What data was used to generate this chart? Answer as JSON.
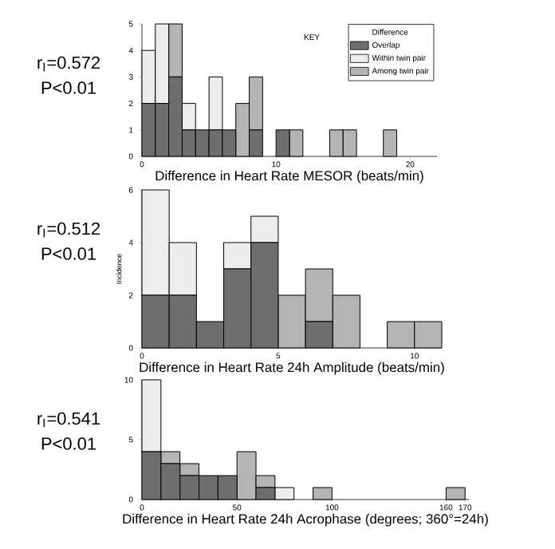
{
  "chart_data": [
    {
      "type": "bar",
      "stacked": true,
      "xlabel": "Difference in Heart Rate MESOR (beats/min)",
      "legend": "top right",
      "legend_title": "Difference",
      "annotations": [
        "r$_{I}$=0.572",
        "P<0.01",
        "KEY"
      ],
      "x": [
        0.5,
        1.5,
        2.5,
        3.5,
        4.5,
        5.5,
        6.5,
        7.5,
        8.5,
        9.5,
        10.5,
        11.5,
        12.5,
        13.5,
        14.5,
        15.5,
        16.5,
        17.5,
        18.5
      ],
      "series": [
        {
          "name": "Overlap",
          "color": "#6e6e6e",
          "values": [
            2,
            2,
            3,
            1,
            1,
            1,
            1,
            0,
            1,
            0,
            1,
            0,
            0,
            0,
            0,
            0,
            0,
            0,
            0
          ]
        },
        {
          "name": "Within twin pair",
          "color": "#ececec",
          "values": [
            2,
            3,
            0,
            1,
            0,
            2,
            0,
            0,
            0,
            0,
            0,
            0,
            0,
            0,
            0,
            0,
            0,
            0,
            0
          ]
        },
        {
          "name": "Among twin pair",
          "color": "#b4b4b4",
          "values": [
            0,
            0,
            2,
            0,
            0,
            0,
            0,
            2,
            2,
            0,
            0,
            1,
            0,
            0,
            1,
            1,
            0,
            0,
            1
          ]
        }
      ],
      "xlim": [
        0,
        22
      ],
      "xticks": [
        0,
        10,
        20
      ],
      "ylim": [
        0,
        5
      ],
      "yticks": [
        0,
        1,
        2,
        3,
        4,
        5
      ]
    },
    {
      "type": "bar",
      "stacked": true,
      "xlabel": "Difference in Heart Rate 24h Amplitude (beats/min)",
      "ylabel": "Incidence",
      "annotations": [
        "r$_{I}$=0.512",
        "P<0.01"
      ],
      "x": [
        0.5,
        1.5,
        2.5,
        3.5,
        4.5,
        5.5,
        6.5,
        7.5,
        8.5,
        9.5,
        10.5
      ],
      "series": [
        {
          "color": "#6e6e6e",
          "values": [
            2,
            2,
            1,
            3,
            4,
            0,
            1,
            0,
            0,
            0,
            0
          ]
        },
        {
          "color": "#ececec",
          "values": [
            4,
            2,
            0,
            1,
            1,
            0,
            0,
            0,
            0,
            0,
            0
          ]
        },
        {
          "color": "#b4b4b4",
          "values": [
            0,
            0,
            0,
            0,
            0,
            2,
            2,
            2,
            0,
            1,
            1
          ]
        }
      ],
      "xlim": [
        0,
        11
      ],
      "xticks": [
        0,
        5,
        10
      ],
      "ylim": [
        0,
        6
      ],
      "yticks": [
        0,
        2,
        4,
        6
      ]
    },
    {
      "type": "bar",
      "stacked": true,
      "xlabel": "Difference in Heart Rate 24h Acrophase (degrees; 360°=24h)",
      "annotations": [
        "r$_{I}$=0.541",
        "P<0.01"
      ],
      "x": [
        5,
        15,
        25,
        35,
        45,
        55,
        65,
        75,
        85,
        95,
        165
      ],
      "series": [
        {
          "color": "#6e6e6e",
          "values": [
            4,
            3,
            2,
            2,
            2,
            0,
            1,
            0,
            0,
            0,
            0
          ]
        },
        {
          "color": "#ececec",
          "values": [
            6,
            0,
            0,
            0,
            0,
            0,
            0,
            1,
            0,
            0,
            0
          ]
        },
        {
          "color": "#b4b4b4",
          "values": [
            0,
            1,
            1,
            0,
            0,
            4,
            1,
            0,
            0,
            1,
            1
          ]
        }
      ],
      "xlim": [
        0,
        172
      ],
      "xticks": [
        0,
        50,
        100,
        160,
        170
      ],
      "ylim": [
        0,
        10
      ],
      "yticks": [
        0,
        5,
        10
      ]
    }
  ]
}
